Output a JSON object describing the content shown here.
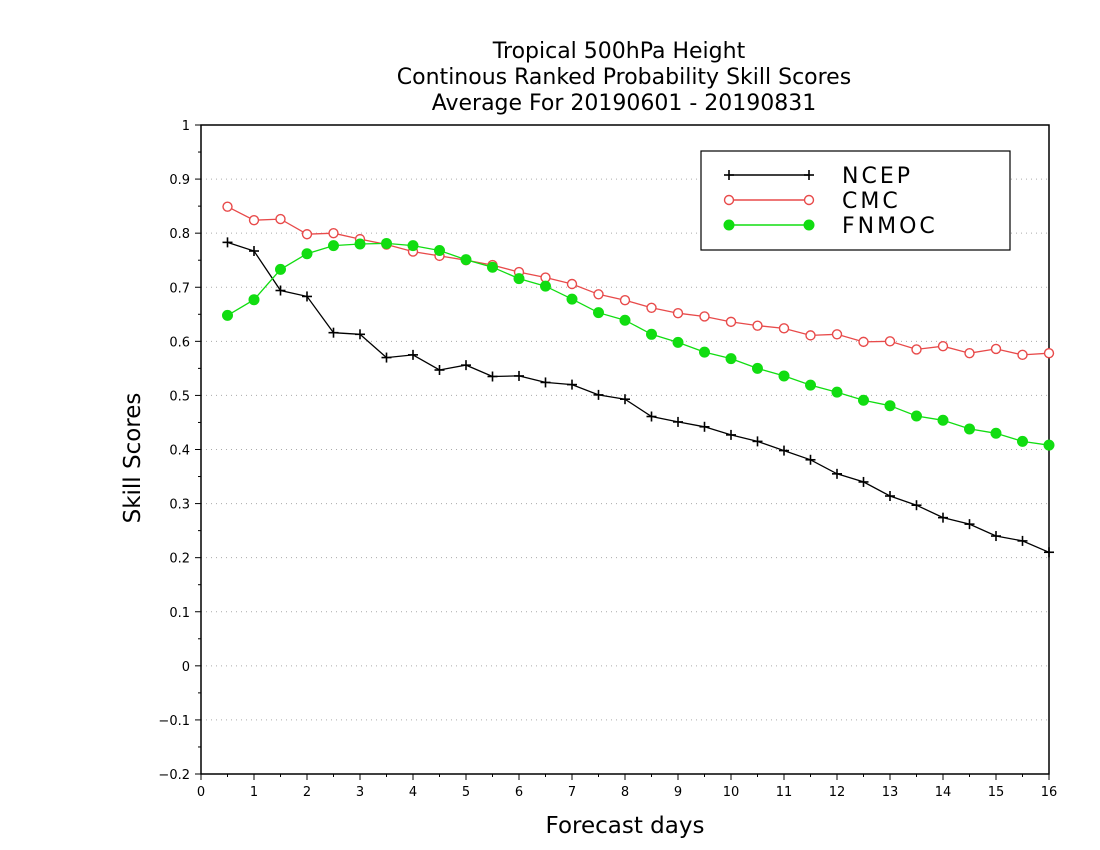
{
  "chart_data": {
    "type": "line",
    "title": [
      "Tropical 500hPa Height",
      "Continous Ranked Probability Skill Scores",
      "Average For 20190601 - 20190831"
    ],
    "xlabel": "Forecast days",
    "ylabel": "Skill Scores",
    "xlim": [
      0,
      16
    ],
    "ylim": [
      -0.2,
      1
    ],
    "xticks": [
      0,
      1,
      2,
      3,
      4,
      5,
      6,
      7,
      8,
      9,
      10,
      11,
      12,
      13,
      14,
      15,
      16
    ],
    "xtick_labels": [
      "0",
      "1",
      "2",
      "3",
      "4",
      "5",
      "6",
      "7",
      "8",
      "9",
      "10",
      "11",
      "12",
      "13",
      "14",
      "15",
      "16"
    ],
    "yticks": [
      -0.2,
      -0.1,
      0,
      0.1,
      0.2,
      0.3,
      0.4,
      0.5,
      0.6,
      0.7,
      0.8,
      0.9,
      1
    ],
    "ytick_labels": [
      "−0.2",
      "−0.1",
      "0",
      "0.1",
      "0.2",
      "0.3",
      "0.4",
      "0.5",
      "0.6",
      "0.7",
      "0.8",
      "0.9",
      "1"
    ],
    "grid": "horizontal dotted",
    "legend_position": "top-right",
    "x": [
      0.5,
      1,
      1.5,
      2,
      2.5,
      3,
      3.5,
      4,
      4.5,
      5,
      5.5,
      6,
      6.5,
      7,
      7.5,
      8,
      8.5,
      9,
      9.5,
      10,
      10.5,
      11,
      11.5,
      12,
      12.5,
      13,
      13.5,
      14,
      14.5,
      15,
      15.5,
      16
    ],
    "series": [
      {
        "name": "NCEP",
        "color": "#000000",
        "marker": "plus",
        "values": [
          0.783,
          0.767,
          0.694,
          0.683,
          0.616,
          0.613,
          0.57,
          0.575,
          0.547,
          0.556,
          0.535,
          0.536,
          0.524,
          0.52,
          0.501,
          0.493,
          0.461,
          0.451,
          0.442,
          0.427,
          0.415,
          0.398,
          0.381,
          0.355,
          0.34,
          0.314,
          0.297,
          0.274,
          0.262,
          0.24,
          0.231,
          0.21
        ]
      },
      {
        "name": "CMC",
        "color": "#e84a4a",
        "marker": "open-circle",
        "values": [
          0.849,
          0.824,
          0.826,
          0.798,
          0.8,
          0.789,
          0.779,
          0.766,
          0.758,
          0.75,
          0.741,
          0.728,
          0.718,
          0.706,
          0.687,
          0.676,
          0.662,
          0.652,
          0.646,
          0.636,
          0.629,
          0.624,
          0.611,
          0.613,
          0.599,
          0.6,
          0.585,
          0.591,
          0.578,
          0.586,
          0.575,
          0.578
        ]
      },
      {
        "name": "FNMOC",
        "color": "#11dd11",
        "marker": "filled-circle",
        "values": [
          0.648,
          0.677,
          0.733,
          0.762,
          0.777,
          0.78,
          0.781,
          0.777,
          0.768,
          0.751,
          0.737,
          0.716,
          0.702,
          0.678,
          0.653,
          0.639,
          0.613,
          0.598,
          0.58,
          0.568,
          0.55,
          0.536,
          0.519,
          0.506,
          0.491,
          0.481,
          0.462,
          0.454,
          0.438,
          0.43,
          0.415,
          0.408
        ]
      }
    ]
  }
}
